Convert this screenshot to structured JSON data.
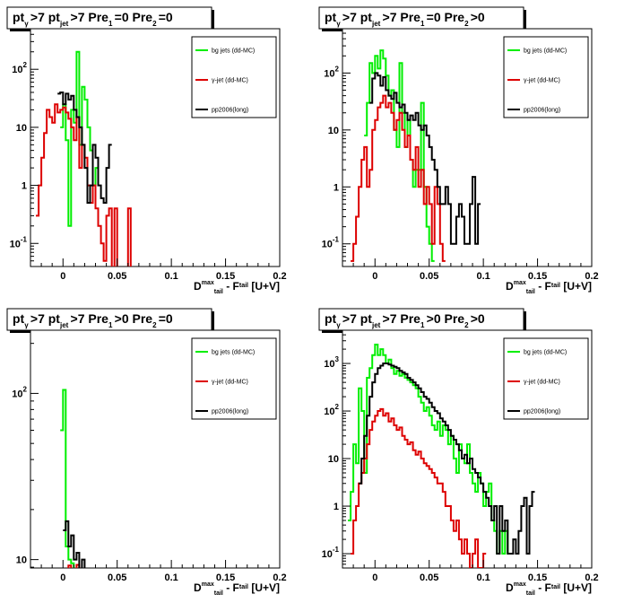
{
  "axis_label": {
    "main1": "D",
    "sup1": "max",
    "sub1": "tail",
    "mid": " - F",
    "sub2": "tail",
    "tail": "[U+V]"
  },
  "colors": {
    "bg_jets": "#00ee00",
    "gamma_jet": "#dd0000",
    "pp2006": "#000000"
  },
  "chart_data": [
    {
      "type": "line",
      "title": {
        "a": "pt",
        "a_sub": "γ",
        "b": ">7  pt",
        "b_sub": "jet",
        "c": ">7  Pre",
        "c_sub": "1",
        "d": "=0  Pre",
        "d_sub": "2",
        "e": "=0"
      },
      "x": {
        "min": -0.03,
        "max": 0.2,
        "ticks": [
          {
            "v": 0,
            "label": "0"
          },
          {
            "v": 0.05,
            "label": "0.05"
          },
          {
            "v": 0.1,
            "label": "0.1"
          },
          {
            "v": 0.15,
            "label": "0.15"
          },
          {
            "v": 0.2,
            "label": "0.2"
          }
        ]
      },
      "y": {
        "log": true,
        "min": 0.04,
        "max": 500,
        "ticks": [
          {
            "v": 0.1,
            "base": "10",
            "exp": "-1"
          },
          {
            "v": 1,
            "base": "1",
            "exp": ""
          },
          {
            "v": 10,
            "base": "10",
            "exp": ""
          },
          {
            "v": 100,
            "base": "10",
            "exp": "2"
          }
        ]
      },
      "legend": {
        "position": "top-right"
      },
      "series": [
        {
          "name": "bg jets (dd-MC)",
          "color": "#00ee00",
          "x0": -0.0025,
          "bw": 0.0025,
          "values": [
            10,
            25,
            6,
            0.2,
            20,
            12,
            200,
            5,
            50,
            30,
            10,
            4,
            1,
            2
          ]
        },
        {
          "name": "γ-jet (dd-MC)",
          "color": "#dd0000",
          "x0": -0.025,
          "bw": 0.0025,
          "values": [
            0.3,
            1,
            3,
            8,
            20,
            15,
            12,
            25,
            18,
            20,
            22,
            18,
            14,
            10,
            6,
            15,
            2,
            5,
            3,
            1,
            0.5,
            1,
            0.4,
            0.2,
            0.1,
            0.05,
            0.3,
            0.4,
            0,
            0.4,
            0,
            0,
            0,
            0,
            0.4,
            0
          ]
        },
        {
          "name": "pp2006(long)",
          "color": "#000000",
          "x0": -0.005,
          "bw": 0.0025,
          "values": [
            38,
            40,
            25,
            38,
            30,
            35,
            20,
            15,
            10,
            5,
            2,
            0.5,
            1,
            5,
            3,
            1,
            0.6,
            0.5,
            2,
            5
          ]
        }
      ]
    },
    {
      "type": "line",
      "title": {
        "a": "pt",
        "a_sub": "γ",
        "b": ">7  pt",
        "b_sub": "jet",
        "c": ">7  Pre",
        "c_sub": "1",
        "d": "=0  Pre",
        "d_sub": "2",
        "e": ">0"
      },
      "x": {
        "min": -0.03,
        "max": 0.2,
        "ticks": [
          {
            "v": 0,
            "label": "0"
          },
          {
            "v": 0.05,
            "label": "0.05"
          },
          {
            "v": 0.1,
            "label": "0.1"
          },
          {
            "v": 0.15,
            "label": "0.15"
          },
          {
            "v": 0.2,
            "label": "0.2"
          }
        ]
      },
      "y": {
        "log": true,
        "min": 0.04,
        "max": 600,
        "ticks": [
          {
            "v": 0.1,
            "base": "10",
            "exp": "-1"
          },
          {
            "v": 1,
            "base": "1",
            "exp": ""
          },
          {
            "v": 10,
            "base": "10",
            "exp": ""
          },
          {
            "v": 100,
            "base": "10",
            "exp": "2"
          }
        ]
      },
      "legend": {
        "position": "top-right"
      },
      "series": [
        {
          "name": "bg jets (dd-MC)",
          "color": "#00ee00",
          "x0": -0.01,
          "bw": 0.0025,
          "values": [
            8,
            30,
            150,
            100,
            200,
            120,
            250,
            180,
            90,
            40,
            50,
            10,
            5,
            150,
            20,
            5,
            15,
            3,
            1,
            2,
            2,
            30,
            1,
            0.2,
            0.1,
            0.05
          ]
        },
        {
          "name": "γ-jet (dd-MC)",
          "color": "#dd0000",
          "x0": -0.0225,
          "bw": 0.0025,
          "values": [
            0.05,
            0.1,
            0.3,
            1,
            3,
            5,
            1,
            2,
            10,
            15,
            25,
            30,
            40,
            25,
            30,
            20,
            10,
            15,
            20,
            10,
            5,
            8,
            3,
            2,
            5,
            1,
            2,
            0.5,
            1,
            0.5,
            0.1,
            1,
            0.5,
            0.1,
            0.05
          ]
        },
        {
          "name": "pp2006(long)",
          "color": "#000000",
          "x0": -0.005,
          "bw": 0.0025,
          "values": [
            30,
            80,
            100,
            90,
            60,
            85,
            50,
            40,
            35,
            45,
            30,
            25,
            28,
            20,
            15,
            18,
            15,
            20,
            12,
            10,
            12,
            8,
            5,
            3,
            2,
            1,
            0.5,
            0.5,
            1,
            0.5,
            0.1,
            0.1,
            0.3,
            0.5,
            0.3,
            0.1,
            0.1,
            0.5,
            1.5,
            0.1,
            0.5
          ]
        }
      ]
    },
    {
      "type": "line",
      "title": {
        "a": "pt",
        "a_sub": "γ",
        "b": ">7  pt",
        "b_sub": "jet",
        "c": ">7  Pre",
        "c_sub": "1",
        "d": ">0  Pre",
        "d_sub": "2",
        "e": "=0"
      },
      "x": {
        "min": -0.03,
        "max": 0.2,
        "ticks": [
          {
            "v": 0,
            "label": "0"
          },
          {
            "v": 0.05,
            "label": "0.05"
          },
          {
            "v": 0.1,
            "label": "0.1"
          },
          {
            "v": 0.15,
            "label": "0.15"
          },
          {
            "v": 0.2,
            "label": "0.2"
          }
        ]
      },
      "y": {
        "log": true,
        "min": 8.9,
        "max": 240,
        "ticks": [
          {
            "v": 10,
            "base": "10",
            "exp": ""
          },
          {
            "v": 100,
            "base": "10",
            "exp": "2"
          }
        ]
      },
      "legend": {
        "position": "top-right"
      },
      "series": [
        {
          "name": "bg jets (dd-MC)",
          "color": "#00ee00",
          "x0": -0.0025,
          "bw": 0.0025,
          "values": [
            60,
            105,
            12,
            10,
            9.5,
            8
          ]
        },
        {
          "name": "γ-jet (dd-MC)",
          "color": "#dd0000",
          "x0": 0.0025,
          "bw": 0.0025,
          "values": [
            8,
            9.2,
            8,
            8,
            9.3,
            8
          ]
        },
        {
          "name": "pp2006(long)",
          "color": "#000000",
          "x0": 0.0,
          "bw": 0.0025,
          "values": [
            15,
            17,
            12,
            14,
            10,
            11,
            8,
            10,
            8
          ]
        }
      ]
    },
    {
      "type": "line",
      "title": {
        "a": "pt",
        "a_sub": "γ",
        "b": ">7  pt",
        "b_sub": "jet",
        "c": ">7  Pre",
        "c_sub": "1",
        "d": ">0  Pre",
        "d_sub": "2",
        "e": ">0"
      },
      "x": {
        "min": -0.03,
        "max": 0.2,
        "ticks": [
          {
            "v": 0,
            "label": "0"
          },
          {
            "v": 0.05,
            "label": "0.05"
          },
          {
            "v": 0.1,
            "label": "0.1"
          },
          {
            "v": 0.15,
            "label": "0.15"
          },
          {
            "v": 0.2,
            "label": "0.2"
          }
        ]
      },
      "y": {
        "log": true,
        "min": 0.05,
        "max": 5000,
        "ticks": [
          {
            "v": 0.1,
            "base": "10",
            "exp": "-1"
          },
          {
            "v": 1,
            "base": "1",
            "exp": ""
          },
          {
            "v": 10,
            "base": "10",
            "exp": ""
          },
          {
            "v": 100,
            "base": "10",
            "exp": "2"
          },
          {
            "v": 1000,
            "base": "10",
            "exp": "3"
          }
        ]
      },
      "legend": {
        "position": "top-right"
      },
      "series": [
        {
          "name": "bg jets (dd-MC)",
          "color": "#00ee00",
          "x0": -0.025,
          "bw": 0.0025,
          "values": [
            0.5,
            2,
            20,
            8,
            300,
            100,
            5,
            500,
            800,
            1500,
            2500,
            1500,
            2000,
            1500,
            1000,
            1200,
            800,
            600,
            700,
            550,
            600,
            500,
            450,
            400,
            350,
            300,
            200,
            150,
            100,
            120,
            80,
            50,
            40,
            60,
            30,
            50,
            40,
            20,
            30,
            10,
            5,
            20,
            10,
            8,
            20,
            5,
            3,
            2,
            5,
            3,
            1,
            2,
            3,
            0.5,
            0.3,
            0.1,
            0.3,
            0.1,
            0.3,
            0.1
          ]
        },
        {
          "name": "γ-jet (dd-MC)",
          "color": "#dd0000",
          "x0": -0.0225,
          "bw": 0.0025,
          "values": [
            0.1,
            0.5,
            1,
            3,
            5,
            10,
            20,
            40,
            60,
            80,
            100,
            110,
            80,
            90,
            60,
            70,
            50,
            40,
            45,
            30,
            25,
            20,
            22,
            15,
            12,
            14,
            10,
            8,
            7,
            6,
            5,
            4,
            3,
            3,
            2,
            1,
            1,
            0.5,
            0.3,
            0.5,
            0.2,
            0.1,
            0.2,
            0.1,
            0.05,
            0.1,
            0.2,
            0.05,
            0.05,
            0.1
          ]
        },
        {
          "name": "pp2006(long)",
          "color": "#000000",
          "x0": -0.015,
          "bw": 0.0025,
          "values": [
            3,
            10,
            30,
            80,
            200,
            400,
            600,
            800,
            900,
            1000,
            1000,
            950,
            900,
            850,
            800,
            700,
            650,
            600,
            500,
            450,
            400,
            350,
            300,
            250,
            200,
            180,
            150,
            120,
            100,
            90,
            70,
            60,
            50,
            40,
            30,
            25,
            20,
            15,
            10,
            12,
            8,
            10,
            6,
            5,
            4,
            3,
            2,
            1.5,
            1,
            0.5,
            1,
            0.1,
            1,
            0.3,
            0.5,
            0.1,
            0.1,
            0.2,
            0.1,
            0.3,
            1,
            1.5,
            0.1,
            1,
            2
          ]
        }
      ]
    }
  ]
}
